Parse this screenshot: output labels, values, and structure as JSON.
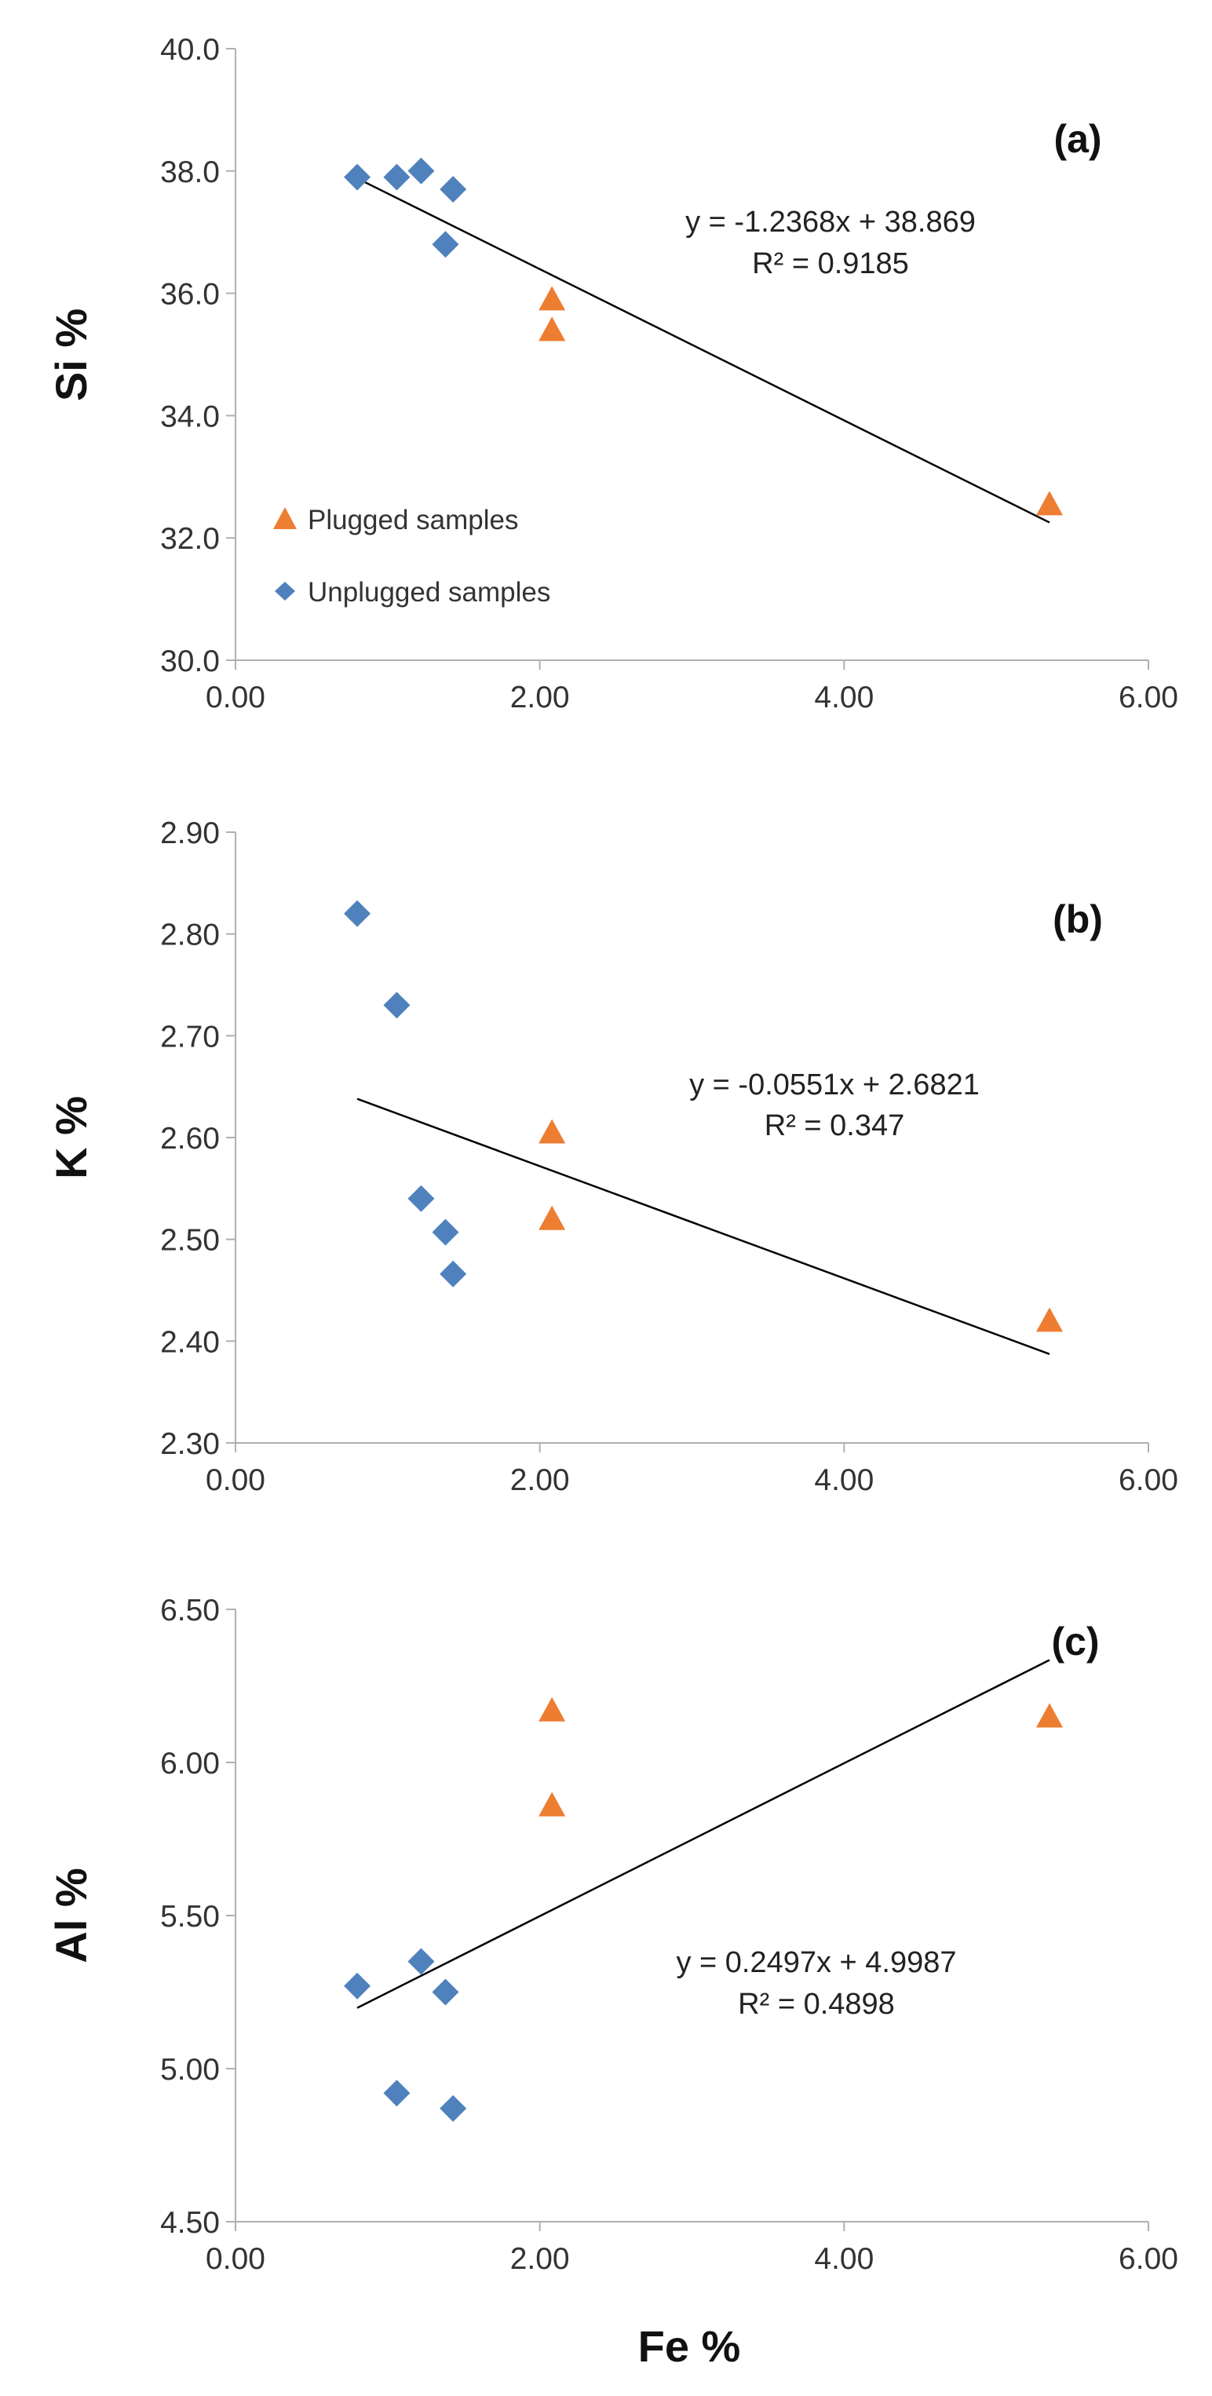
{
  "chart_data": [
    {
      "type": "scatter",
      "id": "a",
      "panel_label": "(a)",
      "ylabel": "Si %",
      "xlabel": "",
      "xlim": [
        0,
        6
      ],
      "ylim": [
        30,
        40
      ],
      "xticks": [
        "0.00",
        "2.00",
        "4.00",
        "6.00"
      ],
      "xtick_values": [
        0,
        2,
        4,
        6
      ],
      "yticks": [
        "30.0",
        "32.0",
        "34.0",
        "36.0",
        "38.0",
        "40.0"
      ],
      "ytick_values": [
        30,
        32,
        34,
        36,
        38,
        40
      ],
      "series": [
        {
          "name": "Plugged samples",
          "marker": "triangle",
          "color": "#ED7D31",
          "x": [
            2.08,
            2.08,
            5.35
          ],
          "y": [
            35.9,
            35.4,
            32.55
          ]
        },
        {
          "name": "Unplugged samples",
          "marker": "diamond",
          "color": "#4F81BD",
          "x": [
            0.8,
            1.06,
            1.22,
            1.38,
            1.43
          ],
          "y": [
            37.9,
            37.9,
            38.0,
            36.8,
            37.7
          ]
        }
      ],
      "trendline": {
        "slope": -1.2368,
        "intercept": 38.869,
        "x_range": [
          0.8,
          5.35
        ]
      },
      "equation": "y = -1.2368x + 38.869",
      "r2": "R² = 0.9185",
      "legend": [
        "Plugged samples",
        "Unplugged samples"
      ],
      "legend_position": "bottom-left"
    },
    {
      "type": "scatter",
      "id": "b",
      "panel_label": "(b)",
      "ylabel": "K %",
      "xlabel": "",
      "xlim": [
        0,
        6
      ],
      "ylim": [
        2.3,
        2.9
      ],
      "xticks": [
        "0.00",
        "2.00",
        "4.00",
        "6.00"
      ],
      "xtick_values": [
        0,
        2,
        4,
        6
      ],
      "yticks": [
        "2.30",
        "2.40",
        "2.50",
        "2.60",
        "2.70",
        "2.80",
        "2.90"
      ],
      "ytick_values": [
        2.3,
        2.4,
        2.5,
        2.6,
        2.7,
        2.8,
        2.9
      ],
      "series": [
        {
          "name": "Plugged samples",
          "marker": "triangle",
          "color": "#ED7D31",
          "x": [
            2.08,
            2.08,
            5.35
          ],
          "y": [
            2.605,
            2.52,
            2.42
          ]
        },
        {
          "name": "Unplugged samples",
          "marker": "diamond",
          "color": "#4F81BD",
          "x": [
            0.8,
            1.06,
            1.22,
            1.38,
            1.43
          ],
          "y": [
            2.82,
            2.73,
            2.54,
            2.507,
            2.466
          ]
        }
      ],
      "trendline": {
        "slope": -0.0551,
        "intercept": 2.6821,
        "x_range": [
          0.8,
          5.35
        ]
      },
      "equation": "y = -0.0551x + 2.6821",
      "r2": "R² = 0.347"
    },
    {
      "type": "scatter",
      "id": "c",
      "panel_label": "(c)",
      "ylabel": "Al %",
      "xlabel": "Fe %",
      "xlim": [
        0,
        6
      ],
      "ylim": [
        4.5,
        6.5
      ],
      "xticks": [
        "0.00",
        "2.00",
        "4.00",
        "6.00"
      ],
      "xtick_values": [
        0,
        2,
        4,
        6
      ],
      "yticks": [
        "4.50",
        "5.00",
        "5.50",
        "6.00",
        "6.50"
      ],
      "ytick_values": [
        4.5,
        5.0,
        5.5,
        6.0,
        6.5
      ],
      "series": [
        {
          "name": "Plugged samples",
          "marker": "triangle",
          "color": "#ED7D31",
          "x": [
            2.08,
            2.08,
            5.35
          ],
          "y": [
            6.17,
            5.86,
            6.15
          ]
        },
        {
          "name": "Unplugged samples",
          "marker": "diamond",
          "color": "#4F81BD",
          "x": [
            0.8,
            1.06,
            1.22,
            1.38,
            1.43
          ],
          "y": [
            5.27,
            4.92,
            5.35,
            5.25,
            4.87
          ]
        }
      ],
      "trendline": {
        "slope": 0.2497,
        "intercept": 4.9987,
        "x_range": [
          0.8,
          5.35
        ]
      },
      "equation": "y = 0.2497x + 4.9987",
      "r2": "R² = 0.4898"
    }
  ]
}
